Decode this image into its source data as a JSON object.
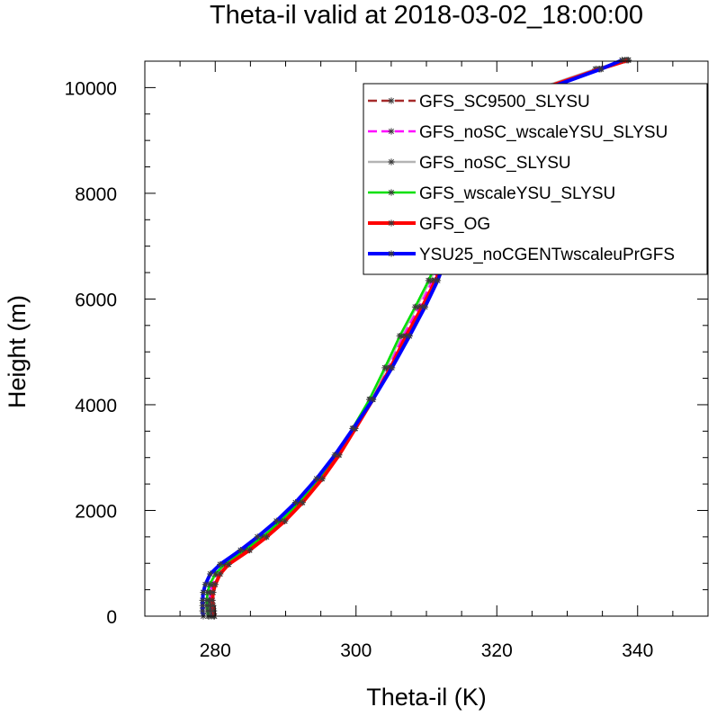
{
  "chart_data": {
    "type": "line",
    "title": "Theta-il valid at 2018-03-02_18:00:00",
    "xlabel": "Theta-il (K)",
    "ylabel": "Height (m)",
    "xlim": [
      270,
      350
    ],
    "ylim": [
      0,
      10500
    ],
    "xticks": [
      280,
      300,
      320,
      340
    ],
    "yticks": [
      0,
      2000,
      4000,
      6000,
      8000,
      10000
    ],
    "legend_position": "top-right",
    "grid": false,
    "series": [
      {
        "name": "GFS_SC9500_SLYSU",
        "color": "#a52a2a",
        "dash": "dashed",
        "marker": "asterisk",
        "points": [
          [
            279.8,
            0
          ],
          [
            279.7,
            100
          ],
          [
            279.6,
            200
          ],
          [
            279.5,
            300
          ],
          [
            279.6,
            450
          ],
          [
            279.9,
            600
          ],
          [
            280.6,
            800
          ],
          [
            281.8,
            980
          ],
          [
            284.8,
            1250
          ],
          [
            287.2,
            1500
          ],
          [
            289.8,
            1800
          ],
          [
            292.3,
            2150
          ],
          [
            295.1,
            2600
          ],
          [
            297.5,
            3050
          ],
          [
            299.8,
            3550
          ],
          [
            302.3,
            4100
          ],
          [
            304.8,
            4700
          ],
          [
            307.0,
            5300
          ],
          [
            309.3,
            5850
          ],
          [
            311.2,
            6350
          ],
          [
            312.8,
            6850
          ],
          [
            314.0,
            7350
          ],
          [
            315.3,
            7800
          ],
          [
            316.3,
            8200
          ],
          [
            317.1,
            8600
          ],
          [
            317.6,
            8950
          ],
          [
            318.3,
            9300
          ],
          [
            320.8,
            9600
          ],
          [
            326.8,
            10000
          ],
          [
            334.5,
            10350
          ],
          [
            338.6,
            10520
          ]
        ]
      },
      {
        "name": "GFS_noSC_wscaleYSU_SLYSU",
        "color": "#ff00ff",
        "dash": "dashed",
        "marker": "asterisk",
        "points": [
          [
            279.5,
            0
          ],
          [
            279.4,
            100
          ],
          [
            279.3,
            200
          ],
          [
            279.2,
            300
          ],
          [
            279.3,
            450
          ],
          [
            279.6,
            600
          ],
          [
            280.4,
            800
          ],
          [
            281.6,
            980
          ],
          [
            284.5,
            1250
          ],
          [
            287.0,
            1500
          ],
          [
            289.6,
            1800
          ],
          [
            292.1,
            2150
          ],
          [
            294.9,
            2600
          ],
          [
            297.3,
            3050
          ],
          [
            299.7,
            3550
          ],
          [
            302.1,
            4100
          ],
          [
            304.5,
            4700
          ],
          [
            306.7,
            5300
          ],
          [
            309.0,
            5850
          ],
          [
            310.9,
            6350
          ],
          [
            312.6,
            6850
          ],
          [
            313.9,
            7350
          ],
          [
            315.2,
            7800
          ],
          [
            316.2,
            8200
          ],
          [
            317.0,
            8600
          ],
          [
            317.5,
            8950
          ],
          [
            318.2,
            9300
          ],
          [
            320.7,
            9600
          ],
          [
            326.5,
            10000
          ],
          [
            334.2,
            10350
          ],
          [
            338.4,
            10520
          ]
        ]
      },
      {
        "name": "GFS_noSC_SLYSU",
        "color": "#b4b4b4",
        "dash": "solid",
        "marker": "asterisk",
        "points": [
          [
            279.2,
            0
          ],
          [
            279.1,
            100
          ],
          [
            279.0,
            200
          ],
          [
            278.9,
            300
          ],
          [
            279.0,
            450
          ],
          [
            279.3,
            600
          ],
          [
            280.1,
            800
          ],
          [
            281.4,
            980
          ],
          [
            284.3,
            1250
          ],
          [
            286.8,
            1500
          ],
          [
            289.4,
            1800
          ],
          [
            292.0,
            2150
          ],
          [
            294.8,
            2600
          ],
          [
            297.3,
            3050
          ],
          [
            299.6,
            3550
          ],
          [
            302.0,
            4100
          ],
          [
            304.3,
            4700
          ],
          [
            306.4,
            5300
          ],
          [
            308.6,
            5850
          ],
          [
            310.5,
            6350
          ],
          [
            312.2,
            6850
          ],
          [
            313.6,
            7350
          ],
          [
            315.0,
            7800
          ],
          [
            316.1,
            8200
          ],
          [
            316.9,
            8600
          ],
          [
            317.4,
            8950
          ],
          [
            318.1,
            9300
          ],
          [
            320.6,
            9600
          ],
          [
            326.3,
            10000
          ],
          [
            334.0,
            10350
          ],
          [
            338.2,
            10520
          ]
        ]
      },
      {
        "name": "GFS_wscaleYSU_SLYSU",
        "color": "#00e000",
        "dash": "solid",
        "marker": "asterisk",
        "points": [
          [
            279.0,
            0
          ],
          [
            278.9,
            100
          ],
          [
            278.8,
            200
          ],
          [
            278.8,
            300
          ],
          [
            278.9,
            450
          ],
          [
            279.2,
            600
          ],
          [
            280.0,
            800
          ],
          [
            281.3,
            980
          ],
          [
            284.2,
            1250
          ],
          [
            286.7,
            1500
          ],
          [
            289.3,
            1800
          ],
          [
            291.9,
            2150
          ],
          [
            294.7,
            2600
          ],
          [
            297.2,
            3050
          ],
          [
            299.5,
            3550
          ],
          [
            301.9,
            4100
          ],
          [
            304.1,
            4700
          ],
          [
            306.2,
            5300
          ],
          [
            308.4,
            5850
          ],
          [
            310.3,
            6350
          ],
          [
            312.0,
            6850
          ],
          [
            313.5,
            7350
          ],
          [
            314.9,
            7800
          ],
          [
            316.0,
            8200
          ],
          [
            316.8,
            8600
          ],
          [
            317.4,
            8950
          ],
          [
            318.1,
            9300
          ],
          [
            321.5,
            9600
          ],
          [
            327.5,
            10000
          ],
          [
            334.8,
            10350
          ],
          [
            337.8,
            10520
          ]
        ]
      },
      {
        "name": "GFS_OG",
        "color": "#ff0000",
        "dash": "solid",
        "marker": "asterisk",
        "points": [
          [
            279.9,
            0
          ],
          [
            279.8,
            100
          ],
          [
            279.7,
            200
          ],
          [
            279.6,
            300
          ],
          [
            279.7,
            450
          ],
          [
            280.0,
            600
          ],
          [
            280.7,
            800
          ],
          [
            281.9,
            980
          ],
          [
            284.9,
            1250
          ],
          [
            287.3,
            1500
          ],
          [
            289.9,
            1800
          ],
          [
            292.4,
            2150
          ],
          [
            295.2,
            2600
          ],
          [
            297.6,
            3050
          ],
          [
            299.9,
            3550
          ],
          [
            302.4,
            4100
          ],
          [
            304.9,
            4700
          ],
          [
            307.1,
            5300
          ],
          [
            309.4,
            5850
          ],
          [
            311.3,
            6350
          ],
          [
            312.9,
            6850
          ],
          [
            314.1,
            7350
          ],
          [
            315.4,
            7800
          ],
          [
            316.4,
            8200
          ],
          [
            317.2,
            8600
          ],
          [
            317.7,
            8950
          ],
          [
            318.4,
            9300
          ],
          [
            320.9,
            9600
          ],
          [
            326.9,
            10000
          ],
          [
            334.6,
            10350
          ],
          [
            338.7,
            10520
          ]
        ]
      },
      {
        "name": "YSU25_noCGENTwscaleuPrGFS",
        "color": "#0000ff",
        "dash": "solid",
        "marker": "asterisk",
        "points": [
          [
            278.3,
            0
          ],
          [
            278.2,
            100
          ],
          [
            278.2,
            200
          ],
          [
            278.2,
            300
          ],
          [
            278.3,
            450
          ],
          [
            278.6,
            600
          ],
          [
            279.3,
            800
          ],
          [
            280.7,
            980
          ],
          [
            283.6,
            1250
          ],
          [
            286.0,
            1500
          ],
          [
            288.7,
            1800
          ],
          [
            291.4,
            2150
          ],
          [
            294.4,
            2600
          ],
          [
            297.0,
            3050
          ],
          [
            299.6,
            3550
          ],
          [
            302.4,
            4100
          ],
          [
            305.1,
            4700
          ],
          [
            307.6,
            5300
          ],
          [
            309.8,
            5850
          ],
          [
            311.6,
            6350
          ],
          [
            313.0,
            6850
          ],
          [
            314.2,
            7350
          ],
          [
            315.3,
            7800
          ],
          [
            316.3,
            8200
          ],
          [
            317.1,
            8600
          ],
          [
            317.7,
            8950
          ],
          [
            318.6,
            9300
          ],
          [
            321.5,
            9600
          ],
          [
            327.5,
            10000
          ],
          [
            334.8,
            10350
          ],
          [
            337.8,
            10520
          ]
        ]
      }
    ]
  }
}
